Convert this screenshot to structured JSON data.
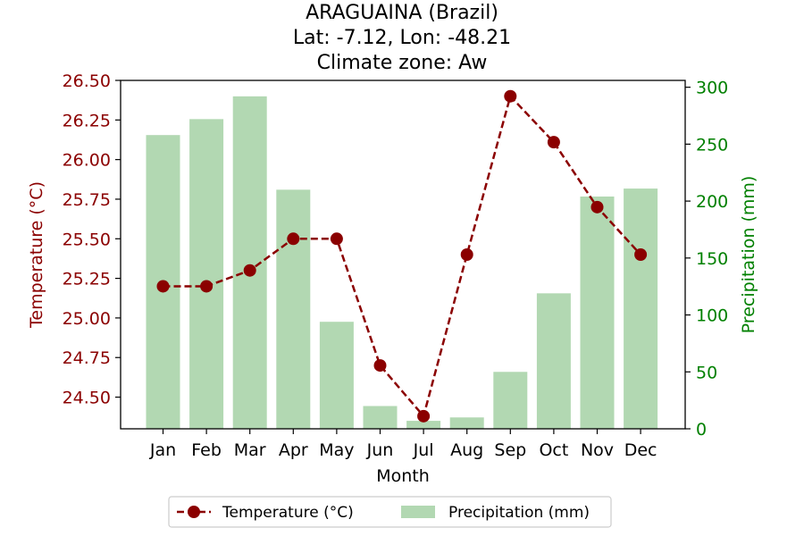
{
  "chart_data": {
    "type": "bar+line",
    "title_lines": [
      "ARAGUAINA (Brazil)",
      "Lat: -7.12, Lon: -48.21",
      "Climate zone: Aw"
    ],
    "xlabel": "Month",
    "ylabel_left": "Temperature (°C)",
    "ylabel_right": "Precipitation (mm)",
    "categories": [
      "Jan",
      "Feb",
      "Mar",
      "Apr",
      "May",
      "Jun",
      "Jul",
      "Aug",
      "Sep",
      "Oct",
      "Nov",
      "Dec"
    ],
    "series": [
      {
        "name": "Temperature (°C)",
        "type": "line",
        "axis": "left",
        "color": "#8b0000",
        "values": [
          25.2,
          25.2,
          25.3,
          25.5,
          25.5,
          24.7,
          24.38,
          25.4,
          26.4,
          26.11,
          25.7,
          25.4
        ]
      },
      {
        "name": "Precipitation (mm)",
        "type": "bar",
        "axis": "right",
        "color": "#b2d8b2",
        "values": [
          258,
          272,
          292,
          210,
          94,
          20,
          7,
          10,
          50,
          119,
          204,
          211
        ]
      }
    ],
    "ylim_left": [
      24.3,
      26.5
    ],
    "yticks_left": [
      "24.50",
      "24.75",
      "25.00",
      "25.25",
      "25.50",
      "25.75",
      "26.00",
      "26.25",
      "26.50"
    ],
    "ylim_right": [
      0,
      306
    ],
    "yticks_right": [
      "0",
      "50",
      "100",
      "150",
      "200",
      "250",
      "300"
    ],
    "legend_position": "bottom-center",
    "grid": false
  }
}
